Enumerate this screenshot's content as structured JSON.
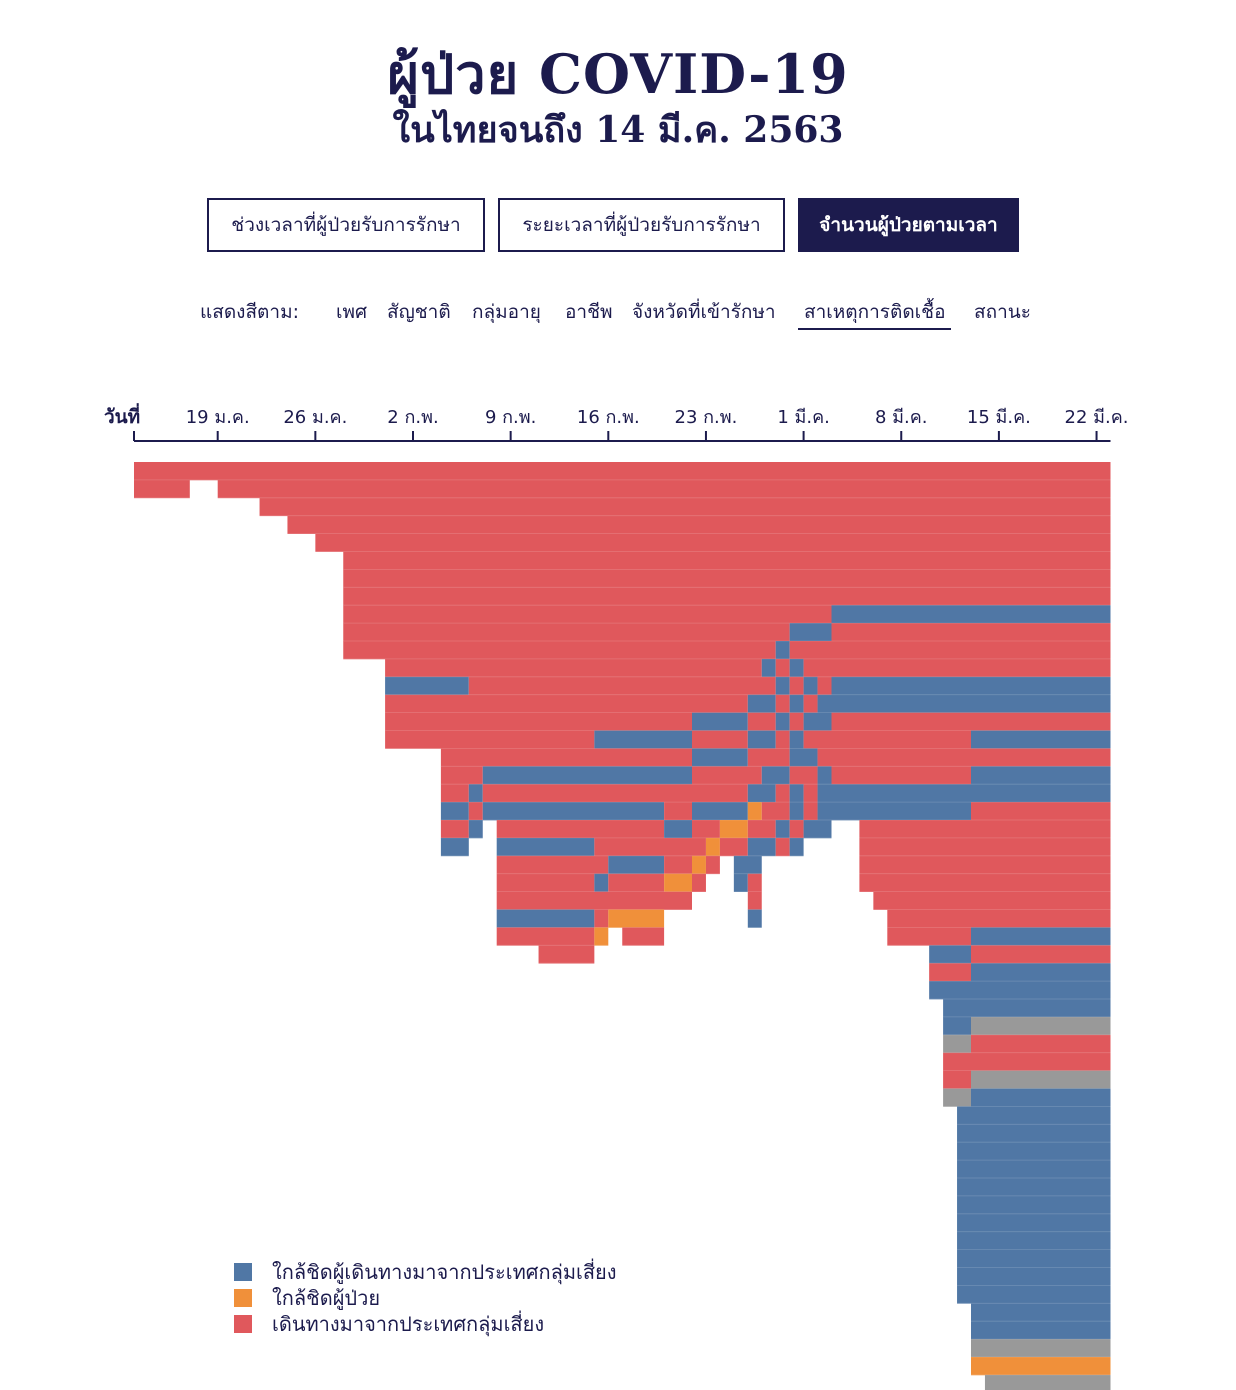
{
  "header": {
    "title": "ผู้ป่วย COVID-19",
    "subtitle": "ในไทยจนถึง 14 มี.ค. 2563"
  },
  "tabs": [
    {
      "label": "ช่วงเวลาที่ผู้ป่วยรับการรักษา",
      "active": false
    },
    {
      "label": "ระยะเวลาที่ผู้ป่วยรับการรักษา",
      "active": false
    },
    {
      "label": "จำนวนผู้ป่วยตามเวลา",
      "active": true
    }
  ],
  "color_by": {
    "label": "แสดงสีตาม:",
    "options": [
      "เพศ",
      "สัญชาติ",
      "กลุ่มอายุ",
      "อาชีพ",
      "จังหวัดที่เข้ารักษา",
      "สาเหตุการติดเชื้อ",
      "สถานะ"
    ],
    "selected": "สาเหตุการติดเชื้อ"
  },
  "colors": {
    "travel": "#e0585c",
    "close_patient": "#f0903a",
    "close_traveler": "#5077a5",
    "unknown": "#999999",
    "axis": "#1c1b4d"
  },
  "legend": [
    {
      "label": "ใกล้ชิดผู้เดินทางมาจากประเทศกลุ่มเสี่ยง",
      "color": "#5077a5"
    },
    {
      "label": "ใกล้ชิดผู้ป่วย",
      "color": "#f0903a"
    },
    {
      "label": "เดินทางมาจากประเทศกลุ่มเสี่ยง",
      "color": "#e0585c"
    }
  ],
  "chart_data": {
    "type": "heatmap",
    "description_axis": "x",
    "x_axis_label": "วันที่",
    "x_ticks": [
      "19 ม.ค.",
      "26 ม.ค.",
      "2 ก.พ.",
      "9 ก.พ.",
      "16 ก.พ.",
      "23 ก.พ.",
      "1 มี.ค.",
      "8 มี.ค.",
      "15 มี.ค.",
      "22 มี.ค."
    ],
    "x_start": "13 ม.ค.",
    "x_end": "22 มี.ค.",
    "categories": [
      "ใกล้ชิดผู้เดินทางมาจากประเทศกลุ่มเสี่ยง",
      "ใกล้ชิดผู้ป่วย",
      "เดินทางมาจากประเทศกลุ่มเสี่ยง"
    ],
    "rows": [
      [
        [
          0,
          70,
          "T"
        ]
      ],
      [
        [
          0,
          4,
          "T"
        ],
        [
          6,
          70,
          "T"
        ]
      ],
      [
        [
          9,
          70,
          "T"
        ]
      ],
      [
        [
          11,
          70,
          "T"
        ]
      ],
      [
        [
          13,
          70,
          "T"
        ]
      ],
      [
        [
          15,
          70,
          "T"
        ]
      ],
      [
        [
          15,
          70,
          "T"
        ]
      ],
      [
        [
          15,
          70,
          "T"
        ]
      ],
      [
        [
          15,
          50,
          "T"
        ],
        [
          50,
          70,
          "C"
        ]
      ],
      [
        [
          15,
          47,
          "T"
        ],
        [
          47,
          50,
          "C"
        ],
        [
          50,
          70,
          "T"
        ]
      ],
      [
        [
          15,
          46,
          "T"
        ],
        [
          46,
          47,
          "C"
        ],
        [
          47,
          70,
          "T"
        ]
      ],
      [
        [
          18,
          45,
          "T"
        ],
        [
          45,
          46,
          "C"
        ],
        [
          46,
          47,
          "T"
        ],
        [
          47,
          48,
          "C"
        ],
        [
          48,
          70,
          "T"
        ]
      ],
      [
        [
          18,
          24,
          "C"
        ],
        [
          24,
          46,
          "T"
        ],
        [
          46,
          47,
          "C"
        ],
        [
          47,
          48,
          "T"
        ],
        [
          48,
          49,
          "C"
        ],
        [
          49,
          50,
          "T"
        ],
        [
          50,
          70,
          "C"
        ]
      ],
      [
        [
          18,
          44,
          "T"
        ],
        [
          44,
          46,
          "C"
        ],
        [
          46,
          47,
          "T"
        ],
        [
          47,
          48,
          "C"
        ],
        [
          48,
          49,
          "T"
        ],
        [
          49,
          70,
          "C"
        ]
      ],
      [
        [
          18,
          40,
          "T"
        ],
        [
          40,
          44,
          "C"
        ],
        [
          44,
          46,
          "T"
        ],
        [
          46,
          47,
          "C"
        ],
        [
          47,
          48,
          "T"
        ],
        [
          48,
          50,
          "C"
        ],
        [
          50,
          70,
          "T"
        ]
      ],
      [
        [
          18,
          33,
          "T"
        ],
        [
          33,
          40,
          "C"
        ],
        [
          40,
          44,
          "T"
        ],
        [
          44,
          46,
          "C"
        ],
        [
          46,
          47,
          "T"
        ],
        [
          47,
          48,
          "C"
        ],
        [
          48,
          60,
          "T"
        ],
        [
          60,
          70,
          "C"
        ]
      ],
      [
        [
          22,
          40,
          "T"
        ],
        [
          40,
          44,
          "C"
        ],
        [
          44,
          47,
          "T"
        ],
        [
          47,
          49,
          "C"
        ],
        [
          49,
          70,
          "T"
        ]
      ],
      [
        [
          22,
          25,
          "T"
        ],
        [
          25,
          40,
          "C"
        ],
        [
          40,
          45,
          "T"
        ],
        [
          45,
          47,
          "C"
        ],
        [
          47,
          49,
          "T"
        ],
        [
          49,
          50,
          "C"
        ],
        [
          50,
          60,
          "T"
        ],
        [
          60,
          70,
          "C"
        ]
      ],
      [
        [
          22,
          24,
          "T"
        ],
        [
          24,
          25,
          "C"
        ],
        [
          25,
          44,
          "T"
        ],
        [
          44,
          46,
          "C"
        ],
        [
          46,
          47,
          "T"
        ],
        [
          47,
          48,
          "C"
        ],
        [
          48,
          49,
          "T"
        ],
        [
          49,
          70,
          "C"
        ]
      ],
      [
        [
          22,
          24,
          "C"
        ],
        [
          24,
          25,
          "T"
        ],
        [
          25,
          38,
          "C"
        ],
        [
          38,
          40,
          "T"
        ],
        [
          40,
          44,
          "C"
        ],
        [
          44,
          45,
          "O"
        ],
        [
          45,
          47,
          "T"
        ],
        [
          47,
          48,
          "C"
        ],
        [
          48,
          49,
          "T"
        ],
        [
          49,
          60,
          "C"
        ],
        [
          60,
          70,
          "T"
        ]
      ],
      [
        [
          22,
          24,
          "T"
        ],
        [
          24,
          25,
          "C"
        ],
        [
          26,
          38,
          "T"
        ],
        [
          38,
          40,
          "C"
        ],
        [
          40,
          42,
          "T"
        ],
        [
          42,
          44,
          "O"
        ],
        [
          44,
          46,
          "T"
        ],
        [
          46,
          47,
          "C"
        ],
        [
          47,
          48,
          "T"
        ],
        [
          48,
          50,
          "C"
        ],
        [
          52,
          70,
          "T"
        ]
      ],
      [
        [
          22,
          24,
          "C"
        ],
        [
          26,
          33,
          "C"
        ],
        [
          33,
          41,
          "T"
        ],
        [
          41,
          42,
          "O"
        ],
        [
          42,
          44,
          "T"
        ],
        [
          44,
          46,
          "C"
        ],
        [
          46,
          47,
          "T"
        ],
        [
          47,
          48,
          "C"
        ],
        [
          52,
          70,
          "T"
        ]
      ],
      [
        [
          26,
          34,
          "T"
        ],
        [
          34,
          38,
          "C"
        ],
        [
          38,
          40,
          "T"
        ],
        [
          40,
          41,
          "O"
        ],
        [
          41,
          42,
          "T"
        ],
        [
          43,
          45,
          "C"
        ],
        [
          52,
          70,
          "T"
        ]
      ],
      [
        [
          26,
          33,
          "T"
        ],
        [
          33,
          34,
          "C"
        ],
        [
          34,
          38,
          "T"
        ],
        [
          38,
          40,
          "O"
        ],
        [
          40,
          41,
          "T"
        ],
        [
          43,
          44,
          "C"
        ],
        [
          44,
          45,
          "T"
        ],
        [
          52,
          70,
          "T"
        ]
      ],
      [
        [
          26,
          40,
          "T"
        ],
        [
          44,
          45,
          "T"
        ],
        [
          53,
          70,
          "T"
        ]
      ],
      [
        [
          26,
          33,
          "C"
        ],
        [
          33,
          34,
          "T"
        ],
        [
          34,
          38,
          "O"
        ],
        [
          44,
          45,
          "C"
        ],
        [
          54,
          70,
          "T"
        ]
      ],
      [
        [
          26,
          33,
          "T"
        ],
        [
          33,
          34,
          "O"
        ],
        [
          35,
          38,
          "T"
        ],
        [
          54,
          60,
          "T"
        ],
        [
          60,
          70,
          "C"
        ]
      ],
      [
        [
          29,
          33,
          "T"
        ],
        [
          57,
          60,
          "C"
        ],
        [
          60,
          70,
          "T"
        ]
      ],
      [
        [
          57,
          60,
          "T"
        ],
        [
          60,
          70,
          "C"
        ]
      ],
      [
        [
          57,
          60,
          "C"
        ],
        [
          60,
          70,
          "C"
        ]
      ],
      [
        [
          58,
          70,
          "C"
        ]
      ],
      [
        [
          58,
          60,
          "C"
        ],
        [
          60,
          70,
          "U"
        ]
      ],
      [
        [
          58,
          60,
          "U"
        ],
        [
          60,
          70,
          "T"
        ]
      ],
      [
        [
          58,
          70,
          "T"
        ]
      ],
      [
        [
          58,
          60,
          "T"
        ],
        [
          60,
          70,
          "U"
        ]
      ],
      [
        [
          58,
          60,
          "U"
        ],
        [
          60,
          70,
          "C"
        ]
      ],
      [
        [
          59,
          70,
          "C"
        ]
      ],
      [
        [
          59,
          70,
          "C"
        ]
      ],
      [
        [
          59,
          70,
          "C"
        ]
      ],
      [
        [
          59,
          70,
          "C"
        ]
      ],
      [
        [
          59,
          70,
          "C"
        ]
      ],
      [
        [
          59,
          70,
          "C"
        ]
      ],
      [
        [
          59,
          70,
          "C"
        ]
      ],
      [
        [
          59,
          70,
          "C"
        ]
      ],
      [
        [
          59,
          70,
          "C"
        ]
      ],
      [
        [
          59,
          70,
          "C"
        ]
      ],
      [
        [
          59,
          70,
          "C"
        ]
      ],
      [
        [
          60,
          70,
          "C"
        ]
      ],
      [
        [
          60,
          70,
          "C"
        ]
      ],
      [
        [
          60,
          70,
          "U"
        ]
      ],
      [
        [
          60,
          70,
          "O"
        ]
      ],
      [
        [
          61,
          70,
          "U"
        ]
      ]
    ]
  }
}
